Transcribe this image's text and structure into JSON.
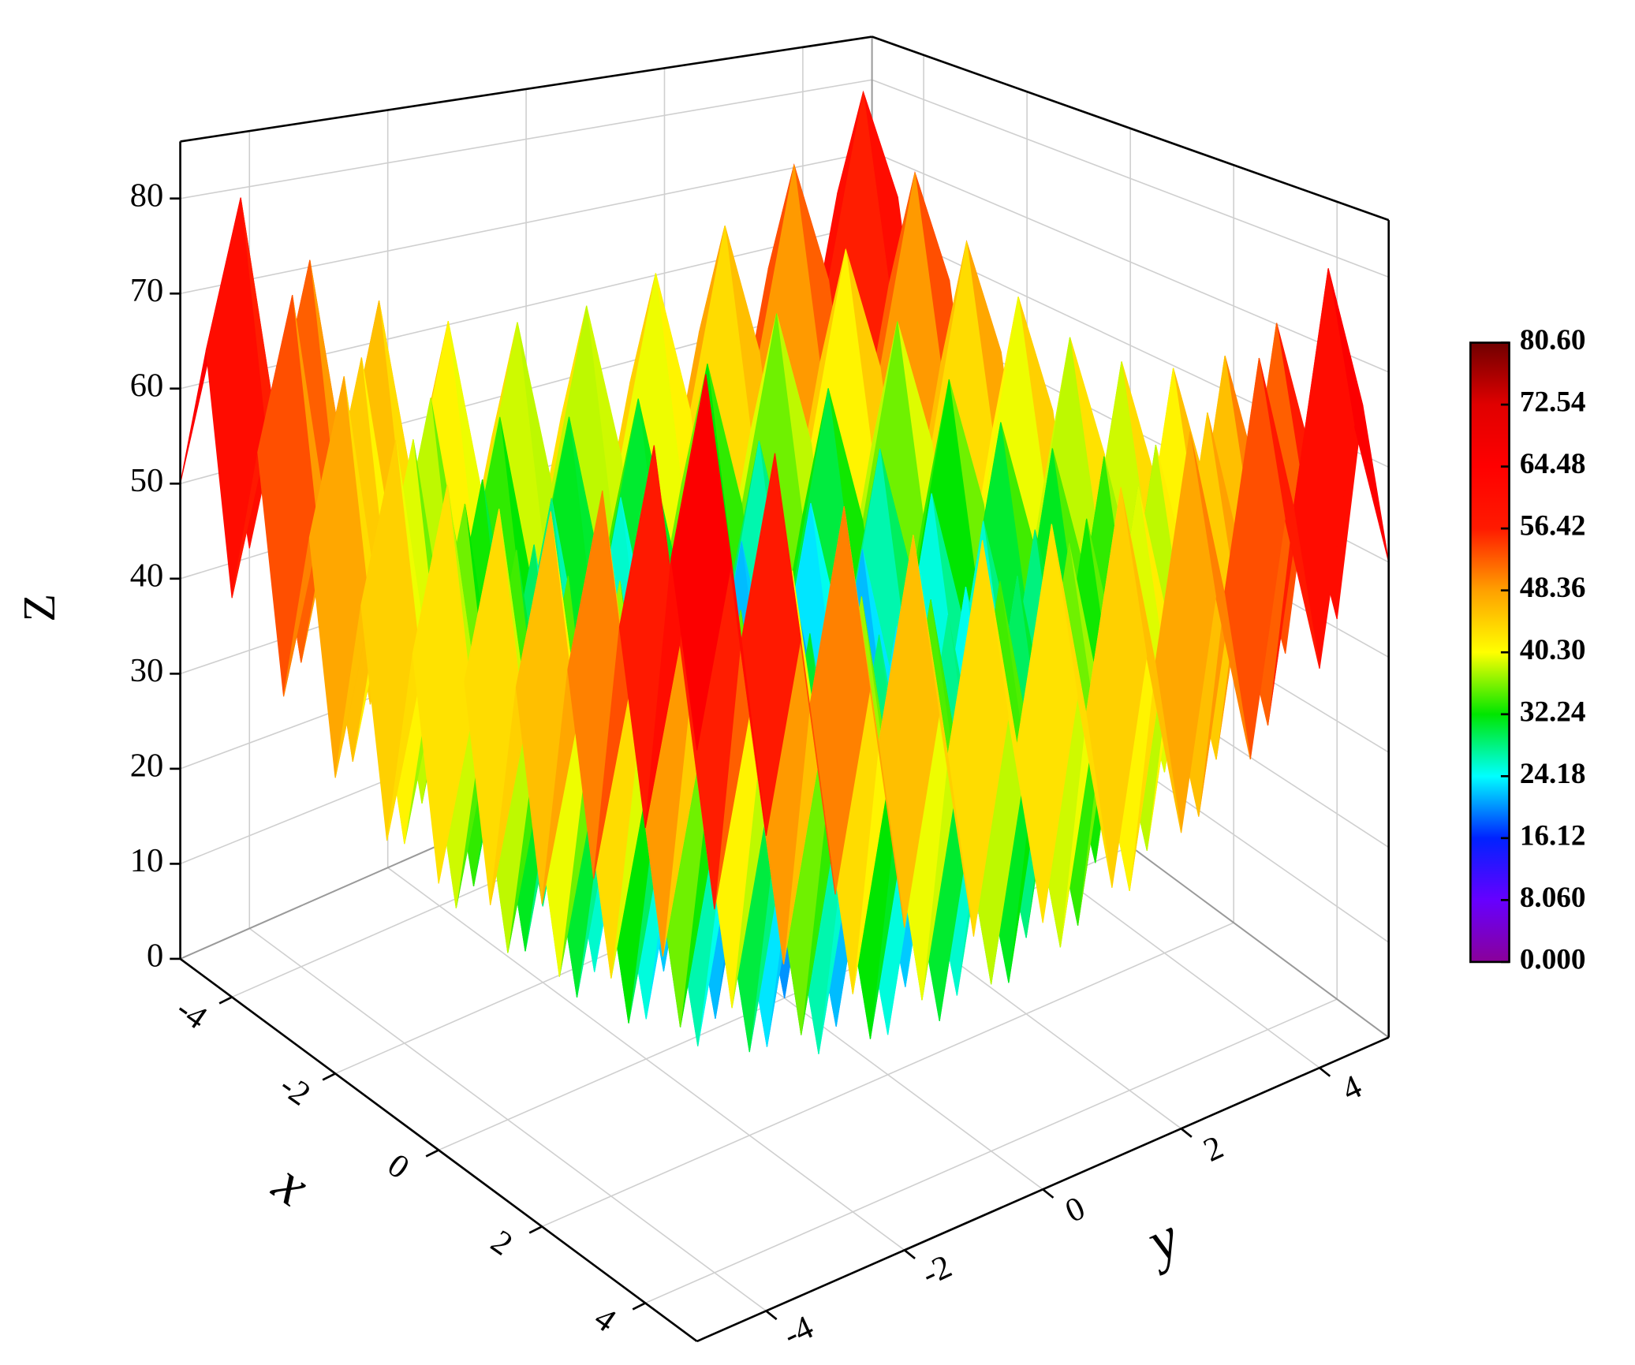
{
  "chart_data": {
    "type": "surface",
    "xlabel": "x",
    "ylabel": "y",
    "zlabel": "Z",
    "xlim": [
      -5,
      5
    ],
    "ylim": [
      -5,
      5
    ],
    "zlim": [
      0,
      86
    ],
    "xticks": [
      -4,
      -2,
      0,
      2,
      4
    ],
    "yticks": [
      -4,
      -2,
      0,
      2,
      4
    ],
    "zticks": [
      0,
      10,
      20,
      30,
      40,
      50,
      60,
      70,
      80
    ],
    "grid": true,
    "clim": [
      0,
      80.6
    ],
    "colormap": [
      "#8a0099",
      "#6600ff",
      "#0022ff",
      "#00ffff",
      "#00e600",
      "#ffff00",
      "#ffa000",
      "#ff1a00",
      "#ff0000",
      "#e00000",
      "#700000"
    ],
    "colorbar_ticks": [
      {
        "value": 0,
        "label": "0.000"
      },
      {
        "value": 8.06,
        "label": "8.060"
      },
      16.12,
      24.18,
      32.24,
      {
        "value": 40.3,
        "label": "40.30"
      },
      48.36,
      56.42,
      64.48,
      72.54,
      {
        "value": 80.6,
        "label": "80.60"
      }
    ],
    "x": [
      -5,
      -4.5,
      -4,
      -3.5,
      -3,
      -2.5,
      -2,
      -1.5,
      -1,
      -0.5,
      0,
      0.5,
      1,
      1.5,
      2,
      2.5,
      3,
      3.5,
      4,
      4.5,
      5
    ],
    "y": [
      -5,
      -4.5,
      -4,
      -3.5,
      -3,
      -2.5,
      -2,
      -1.5,
      -1,
      -0.5,
      0,
      0.5,
      1,
      1.5,
      2,
      2.5,
      3,
      3.5,
      4,
      4.5,
      5
    ],
    "z": [
      [
        50,
        65.25,
        41,
        57.25,
        34,
        51.25,
        29,
        47.25,
        26,
        45.25,
        25,
        45.25,
        26,
        47.25,
        29,
        51.25,
        34,
        57.25,
        41,
        65.25,
        50
      ],
      [
        65.25,
        80.5,
        56.25,
        72.5,
        49.25,
        66.5,
        44.25,
        62.5,
        41.25,
        60.5,
        40.25,
        60.5,
        41.25,
        62.5,
        44.25,
        66.5,
        49.25,
        72.5,
        56.25,
        80.5,
        65.25
      ],
      [
        41,
        56.25,
        32,
        48.25,
        25,
        42.25,
        20,
        38.25,
        17,
        36.25,
        16,
        36.25,
        17,
        38.25,
        20,
        42.25,
        25,
        48.25,
        32,
        56.25,
        41
      ],
      [
        57.25,
        72.5,
        48.25,
        64.5,
        41.25,
        58.5,
        36.25,
        54.5,
        33.25,
        52.5,
        32.25,
        52.5,
        33.25,
        54.5,
        36.25,
        58.5,
        41.25,
        64.5,
        48.25,
        72.5,
        57.25
      ],
      [
        34,
        49.25,
        25,
        41.25,
        18,
        35.25,
        13,
        31.25,
        10,
        29.25,
        9,
        29.25,
        10,
        31.25,
        13,
        35.25,
        18,
        41.25,
        25,
        49.25,
        34
      ],
      [
        51.25,
        66.5,
        42.25,
        58.5,
        35.25,
        52.5,
        30.25,
        48.5,
        27.25,
        46.5,
        26.25,
        46.5,
        27.25,
        48.5,
        30.25,
        52.5,
        35.25,
        58.5,
        42.25,
        66.5,
        51.25
      ],
      [
        29,
        44.25,
        20,
        36.25,
        13,
        30.25,
        8,
        26.25,
        5,
        24.25,
        4,
        24.25,
        5,
        26.25,
        8,
        30.25,
        13,
        36.25,
        20,
        44.25,
        29
      ],
      [
        47.25,
        62.5,
        38.25,
        54.5,
        31.25,
        48.5,
        26.25,
        44.5,
        23.25,
        42.5,
        22.25,
        42.5,
        23.25,
        44.5,
        26.25,
        48.5,
        31.25,
        54.5,
        38.25,
        62.5,
        47.25
      ],
      [
        26,
        41.25,
        17,
        33.25,
        10,
        27.25,
        5,
        23.25,
        2,
        21.25,
        1,
        21.25,
        2,
        23.25,
        5,
        27.25,
        10,
        33.25,
        17,
        41.25,
        26
      ],
      [
        45.25,
        60.5,
        36.25,
        52.5,
        29.25,
        46.5,
        24.25,
        42.5,
        21.25,
        40.5,
        20.25,
        40.5,
        21.25,
        42.5,
        24.25,
        46.5,
        29.25,
        52.5,
        36.25,
        60.5,
        45.25
      ],
      [
        25,
        40.25,
        16,
        32.25,
        9,
        26.25,
        4,
        22.25,
        1,
        20.25,
        0,
        20.25,
        1,
        22.25,
        4,
        26.25,
        9,
        32.25,
        16,
        40.25,
        25
      ],
      [
        45.25,
        60.5,
        36.25,
        52.5,
        29.25,
        46.5,
        24.25,
        42.5,
        21.25,
        40.5,
        20.25,
        40.5,
        21.25,
        42.5,
        24.25,
        46.5,
        29.25,
        52.5,
        36.25,
        60.5,
        45.25
      ],
      [
        26,
        41.25,
        17,
        33.25,
        10,
        27.25,
        5,
        23.25,
        2,
        21.25,
        1,
        21.25,
        2,
        23.25,
        5,
        27.25,
        10,
        33.25,
        17,
        41.25,
        26
      ],
      [
        47.25,
        62.5,
        38.25,
        54.5,
        31.25,
        48.5,
        26.25,
        44.5,
        23.25,
        42.5,
        22.25,
        42.5,
        23.25,
        44.5,
        26.25,
        48.5,
        31.25,
        54.5,
        38.25,
        62.5,
        47.25
      ],
      [
        29,
        44.25,
        20,
        36.25,
        13,
        30.25,
        8,
        26.25,
        5,
        24.25,
        4,
        24.25,
        5,
        26.25,
        8,
        30.25,
        13,
        36.25,
        20,
        44.25,
        29
      ],
      [
        51.25,
        66.5,
        42.25,
        58.5,
        35.25,
        52.5,
        30.25,
        48.5,
        27.25,
        46.5,
        26.25,
        46.5,
        27.25,
        48.5,
        30.25,
        52.5,
        35.25,
        58.5,
        42.25,
        66.5,
        51.25
      ],
      [
        34,
        49.25,
        25,
        41.25,
        18,
        35.25,
        13,
        31.25,
        10,
        29.25,
        9,
        29.25,
        10,
        31.25,
        13,
        35.25,
        18,
        41.25,
        25,
        49.25,
        34
      ],
      [
        57.25,
        72.5,
        48.25,
        64.5,
        41.25,
        58.5,
        36.25,
        54.5,
        33.25,
        52.5,
        32.25,
        52.5,
        33.25,
        54.5,
        36.25,
        58.5,
        41.25,
        64.5,
        48.25,
        72.5,
        57.25
      ],
      [
        41,
        56.25,
        32,
        48.25,
        25,
        42.25,
        20,
        38.25,
        17,
        36.25,
        16,
        36.25,
        17,
        38.25,
        20,
        42.25,
        25,
        48.25,
        32,
        56.25,
        41
      ],
      [
        65.25,
        80.5,
        56.25,
        72.5,
        49.25,
        66.5,
        44.25,
        62.5,
        41.25,
        60.5,
        40.25,
        60.5,
        41.25,
        62.5,
        44.25,
        66.5,
        49.25,
        72.5,
        56.25,
        80.5,
        65.25
      ],
      [
        50,
        65.25,
        41,
        57.25,
        34,
        51.25,
        29,
        47.25,
        26,
        45.25,
        25,
        45.25,
        26,
        47.25,
        29,
        51.25,
        34,
        57.25,
        41,
        65.25,
        50
      ]
    ]
  }
}
